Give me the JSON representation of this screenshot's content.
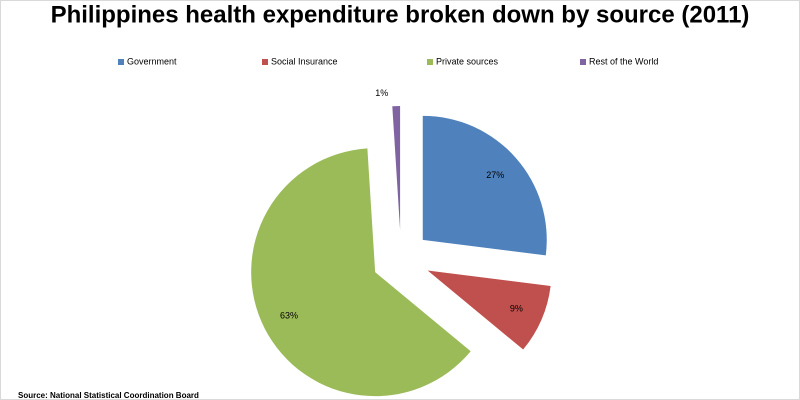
{
  "chart_data": {
    "type": "pie",
    "title": "Philippines health expenditure broken down by source (2011)",
    "categories": [
      "Government",
      "Social Insurance",
      "Private sources",
      "Rest of the World"
    ],
    "values": [
      27,
      9,
      63,
      1
    ],
    "value_labels": [
      "27%",
      "9%",
      "63%",
      "1%"
    ],
    "colors": [
      "#4f81bd",
      "#c0504d",
      "#9bbb59",
      "#8064a2"
    ],
    "legend": "top",
    "source": "Source: National Statistical Coordination Board"
  }
}
